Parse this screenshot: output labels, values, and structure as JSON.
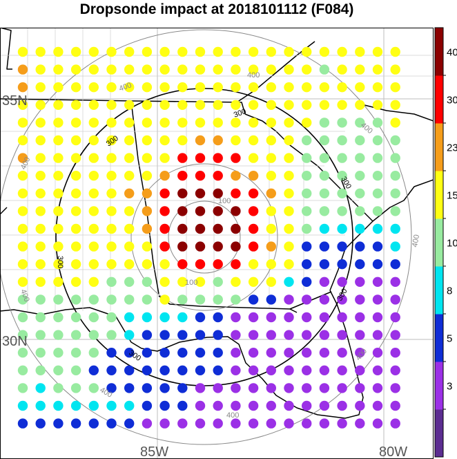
{
  "title": "Dropsonde impact at 2018101112 (F084)",
  "map": {
    "lat_labels": [
      "35N",
      "30N"
    ],
    "lon_labels": [
      "85W",
      "80W"
    ],
    "contours": [
      {
        "level": "100",
        "color": "#888888"
      },
      {
        "level": "200",
        "color": "#888888"
      },
      {
        "level": "300",
        "color": "#000000"
      },
      {
        "level": "400",
        "color": "#888888"
      }
    ]
  },
  "colorbar": {
    "ticks": [
      "40",
      "30",
      "23",
      "15",
      "10",
      "8",
      "5",
      "3"
    ],
    "colors": [
      "#5c2d91",
      "#9b30e6",
      "#0f2dd6",
      "#00e5f0",
      "#98eba0",
      "#ffff13",
      "#f59d1a",
      "#ff0000",
      "#8b0000"
    ]
  },
  "chart_data": {
    "type": "heatmap",
    "title": "Dropsonde impact at 2018101112 (F084)",
    "colorbar_levels": [
      3,
      5,
      8,
      10,
      15,
      23,
      30,
      40
    ],
    "grid_rows": [
      "YYYYYYYYYYYYYYYYYYYYYY",
      "OYYYYYYYYYYYYYYYYGYYYY",
      "OYYYYYYYYYYYYYYYYYYYYY",
      "YYYYYYYYYYYYYYYYYYYYYY",
      "YYYYYYYYYYYYYYYYYGGGGY",
      "YYYYYYYYYYOOYYYYGGGGGG",
      "OYYYYYYYYRRRRYYYGGGGGG",
      "YYYYYYYYORRROOYYGGGGGG",
      "YYYYYYOORDDDRROYGGGGGG",
      "YYYYYYYORDDDDRYYGGGGGG",
      "YYYYYYYORDDDDRYYGCCCCC",
      "YYYYYYYYRDDDDROYBBBBBC",
      "YYYYYYYYYRRRRYYYBBBBBB",
      "YYYYYGGGYYYGYYYCBPPPPP",
      "GGGGGGGGYGGGGBBPPPPPPP",
      "GGGGGGCCCCBBPPPPPPPPPP",
      "GGGGGGCBBBBBPPPPPPPPPP",
      "GGGGGBBBBBBBPPPPPPPPPP",
      "GGGGBBBBBBBBPPPPPPPPPP",
      "GCGGGBBBBBPPPPPPPPPPPP",
      "CCCCCCCBBBPPPPPPPPPPPP",
      "BBBBBBBPPPPPPPPPPPPPPP"
    ],
    "legend_codes": {
      "D": "> 40",
      "R": "30-40",
      "O": "23-30",
      "Y": "15-23",
      "G": "10-15",
      "C": "8-10",
      "B": "5-8",
      "P": "3-5",
      "I": "< 3"
    }
  }
}
